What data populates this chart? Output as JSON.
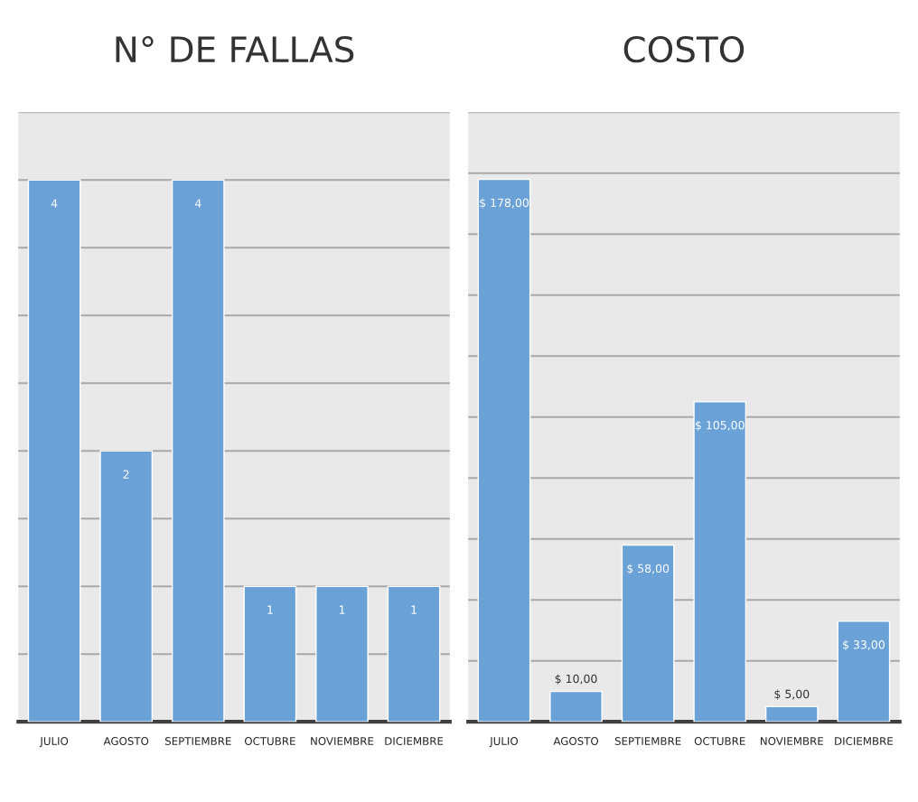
{
  "chart_data": [
    {
      "type": "bar",
      "title": "N° DE FALLAS",
      "categories": [
        "JULIO",
        "AGOSTO",
        "SEPTIEMBRE",
        "OCTUBRE",
        "NOVIEMBRE",
        "DICIEMBRE"
      ],
      "values": [
        4,
        2,
        4,
        1,
        1,
        1
      ],
      "color": "#6aa2d8",
      "data_labels": true,
      "ylim": [
        0,
        4.5
      ],
      "yticks": [
        {
          "value": 0.5,
          "label": null
        },
        {
          "value": 1,
          "label": null
        },
        {
          "value": 1.5,
          "label": null
        },
        {
          "value": 2,
          "label": null
        },
        {
          "value": 2.5,
          "label": null
        },
        {
          "value": 3,
          "label": null
        },
        {
          "value": 3.5,
          "label": null
        },
        {
          "value": 4,
          "label": null
        },
        {
          "value": 4.5,
          "label": null
        }
      ],
      "grid": "y",
      "tick_labels": "x"
    },
    {
      "type": "bar",
      "title": "COSTO",
      "categories": [
        "JULIO",
        "AGOSTO",
        "SEPTIEMBRE",
        "OCTUBRE",
        "NOVIEMBRE",
        "DICIEMBRE"
      ],
      "values": [
        178,
        10,
        58,
        105,
        5,
        33
      ],
      "value_labels": [
        "$ 178,00",
        "$ 10,00",
        "$ 58,00",
        "$ 105,00",
        "$ 5,00",
        "$ 33,00"
      ],
      "color": "#6aa2d8",
      "ylim": [
        0,
        200
      ],
      "yticks": [
        {
          "value": 20,
          "label": null
        },
        {
          "value": 40,
          "label": null
        },
        {
          "value": 60,
          "label": null
        },
        {
          "value": 80,
          "label": null
        },
        {
          "value": 100,
          "label": null
        },
        {
          "value": 120,
          "label": null
        },
        {
          "value": 140,
          "label": null
        },
        {
          "value": 160,
          "label": null
        },
        {
          "value": 180,
          "label": null
        },
        {
          "value": 200,
          "label": null
        }
      ],
      "grid": "y",
      "tick_labels": "x"
    }
  ]
}
